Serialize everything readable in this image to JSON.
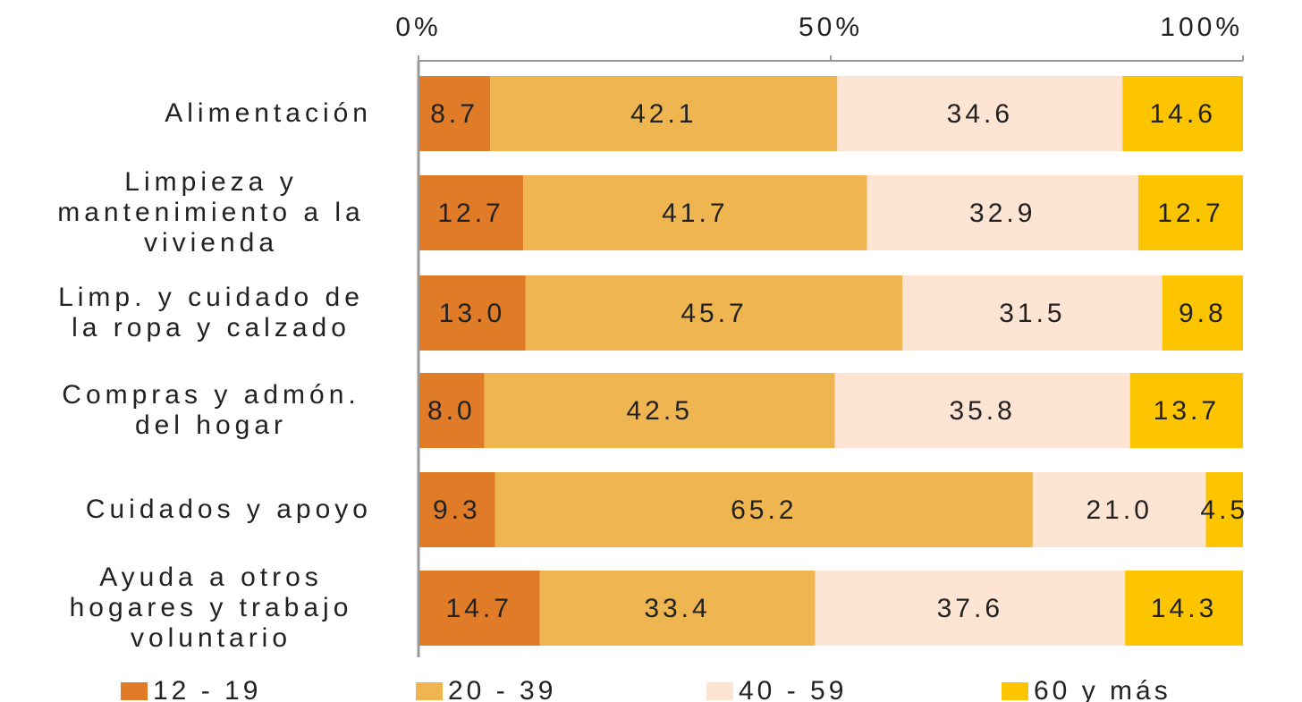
{
  "chart_data": {
    "type": "stacked-bar",
    "orientation": "horizontal",
    "categories": [
      "Alimentación",
      "Limpieza y mantenimiento a la vivienda",
      "Limp. y cuidado de la ropa y calzado",
      "Compras y admón. del hogar",
      "Cuidados y apoyo",
      "Ayuda a otros hogares y trabajo voluntario"
    ],
    "series": [
      {
        "name": "12 - 19",
        "color": "#e07b28",
        "values": [
          8.7,
          12.7,
          13.0,
          8.0,
          9.3,
          14.7
        ],
        "value_labels": [
          "8.7",
          "12.7",
          "13.0",
          "8.0",
          "9.3",
          "14.7"
        ]
      },
      {
        "name": "20 - 39",
        "color": "#efb550",
        "values": [
          42.1,
          41.7,
          45.7,
          42.5,
          65.2,
          33.4
        ],
        "value_labels": [
          "42.1",
          "41.7",
          "45.7",
          "42.5",
          "65.2",
          "33.4"
        ]
      },
      {
        "name": "40 - 59",
        "color": "#fde4d3",
        "values": [
          34.6,
          32.9,
          31.5,
          35.8,
          21.0,
          37.6
        ],
        "value_labels": [
          "34.6",
          "32.9",
          "31.5",
          "35.8",
          "21.0",
          "37.6"
        ]
      },
      {
        "name": "60 y más",
        "color": "#fcc500",
        "values": [
          14.6,
          12.7,
          9.8,
          13.7,
          4.5,
          14.3
        ],
        "value_labels": [
          "14.6",
          "12.7",
          "9.8",
          "13.7",
          "4.5",
          "14.3"
        ]
      }
    ],
    "xlim": [
      0,
      100
    ],
    "xticks": [
      {
        "value": 0,
        "label": "0%"
      },
      {
        "value": 50,
        "label": "50%"
      },
      {
        "value": 100,
        "label": "100%"
      }
    ],
    "legend": "bottom"
  }
}
